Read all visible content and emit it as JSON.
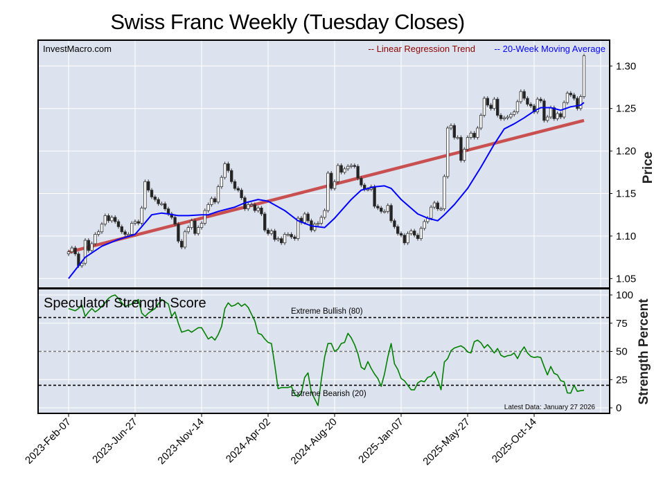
{
  "chart_data": [
    {
      "type": "candlestick",
      "title": "Swiss Franc Weekly (Tuesday Closes)",
      "watermark": "InvestMacro.com",
      "ylabel": "Price",
      "ylim": [
        1.03,
        1.33
      ],
      "yticks": [
        "1.05",
        "1.10",
        "1.15",
        "1.20",
        "1.25",
        "1.30"
      ],
      "x_tick_labels": [
        "2023-Feb-07",
        "2023-Jun-27",
        "2023-Nov-14",
        "2024-Apr-02",
        "2024-Aug-20",
        "2025-Jan-07",
        "2025-May-27",
        "2025-Oct-14"
      ],
      "frequency": "weekly",
      "grid": true,
      "legend": {
        "placement": "top-right",
        "entries": [
          {
            "label": "-- Linear Regression Trend",
            "color": "#8b0000"
          },
          {
            "label": "-- 20-Week Moving Average",
            "color": "#0000ff"
          }
        ]
      },
      "closes": [
        1.0815,
        1.086,
        1.079,
        1.065,
        1.068,
        1.095,
        1.083,
        1.091,
        1.102,
        1.105,
        1.114,
        1.124,
        1.118,
        1.122,
        1.117,
        1.111,
        1.105,
        1.102,
        1.102,
        1.115,
        1.117,
        1.115,
        1.133,
        1.164,
        1.154,
        1.146,
        1.143,
        1.138,
        1.138,
        1.132,
        1.126,
        1.122,
        1.114,
        1.094,
        1.087,
        1.105,
        1.11,
        1.118,
        1.103,
        1.11,
        1.115,
        1.13,
        1.137,
        1.144,
        1.14,
        1.158,
        1.169,
        1.185,
        1.177,
        1.164,
        1.156,
        1.154,
        1.145,
        1.132,
        1.137,
        1.137,
        1.13,
        1.133,
        1.126,
        1.107,
        1.103,
        1.106,
        1.096,
        1.097,
        1.092,
        1.102,
        1.102,
        1.099,
        1.097,
        1.121,
        1.116,
        1.126,
        1.118,
        1.107,
        1.114,
        1.115,
        1.122,
        1.13,
        1.174,
        1.156,
        1.164,
        1.183,
        1.175,
        1.179,
        1.182,
        1.183,
        1.182,
        1.168,
        1.16,
        1.155,
        1.155,
        1.158,
        1.135,
        1.133,
        1.129,
        1.129,
        1.136,
        1.118,
        1.111,
        1.103,
        1.101,
        1.092,
        1.103,
        1.106,
        1.101,
        1.097,
        1.109,
        1.117,
        1.121,
        1.134,
        1.139,
        1.132,
        1.132,
        1.17,
        1.227,
        1.23,
        1.216,
        1.216,
        1.189,
        1.202,
        1.216,
        1.221,
        1.216,
        1.227,
        1.242,
        1.262,
        1.254,
        1.25,
        1.261,
        1.242,
        1.238,
        1.239,
        1.24,
        1.243,
        1.246,
        1.258,
        1.27,
        1.262,
        1.255,
        1.253,
        1.246,
        1.261,
        1.259,
        1.236,
        1.24,
        1.251,
        1.238,
        1.244,
        1.24,
        1.257,
        1.268,
        1.266,
        1.262,
        1.25,
        1.264,
        1.312
      ],
      "first_open": 1.079,
      "moving_average": [
        [
          0,
          1.05
        ],
        [
          5,
          1.075
        ],
        [
          10,
          1.088
        ],
        [
          15,
          1.096
        ],
        [
          20,
          1.102
        ],
        [
          22,
          1.111
        ],
        [
          25,
          1.125
        ],
        [
          28,
          1.127
        ],
        [
          30,
          1.126
        ],
        [
          33,
          1.124
        ],
        [
          36,
          1.124
        ],
        [
          40,
          1.125
        ],
        [
          42,
          1.125
        ],
        [
          45,
          1.129
        ],
        [
          50,
          1.134
        ],
        [
          53,
          1.139
        ],
        [
          57,
          1.143
        ],
        [
          60,
          1.141
        ],
        [
          65,
          1.13
        ],
        [
          69,
          1.118
        ],
        [
          73,
          1.112
        ],
        [
          77,
          1.11
        ],
        [
          80,
          1.121
        ],
        [
          85,
          1.143
        ],
        [
          88,
          1.154
        ],
        [
          92,
          1.158
        ],
        [
          95,
          1.159
        ],
        [
          97,
          1.156
        ],
        [
          100,
          1.143
        ],
        [
          105,
          1.126
        ],
        [
          108,
          1.121
        ],
        [
          111,
          1.118
        ],
        [
          113,
          1.125
        ],
        [
          116,
          1.137
        ],
        [
          120,
          1.156
        ],
        [
          124,
          1.181
        ],
        [
          128,
          1.208
        ],
        [
          131,
          1.226
        ],
        [
          134,
          1.232
        ],
        [
          137,
          1.239
        ],
        [
          140,
          1.247
        ],
        [
          142,
          1.251
        ],
        [
          145,
          1.251
        ],
        [
          148,
          1.248
        ],
        [
          151,
          1.252
        ],
        [
          154,
          1.254
        ],
        [
          155,
          1.257
        ]
      ],
      "regression": {
        "start": 1.081,
        "end": 1.236
      },
      "colors": {
        "up": "#ffffff",
        "down": "#222222",
        "regression": "#c85050",
        "moving_average": "#0000ff"
      }
    },
    {
      "type": "line",
      "title": "Speculator Strength Score",
      "ylabel": "Strength Percent",
      "ylim": [
        0,
        100
      ],
      "yticks": [
        "0",
        "25",
        "50",
        "75",
        "100"
      ],
      "frequency": "weekly",
      "annotations": {
        "bullish": {
          "label": "Extreme Bullish (80)",
          "value": 80
        },
        "bearish": {
          "label": "Extreme Bearish (20)",
          "value": 20
        },
        "midline": 50,
        "latest": "Latest Data: January 27 2026"
      },
      "color": "#008000",
      "values": [
        88,
        87,
        86,
        88,
        91,
        81,
        85,
        88,
        85,
        87,
        90,
        93,
        97,
        99,
        100,
        97,
        93,
        90,
        91,
        92,
        94,
        96,
        84,
        81,
        84,
        86,
        88,
        92,
        96,
        94,
        92,
        81,
        85,
        75,
        67,
        68,
        69,
        67,
        69,
        71,
        71,
        66,
        61,
        63,
        60,
        65,
        72,
        88,
        93,
        90,
        91,
        93,
        90,
        92,
        89,
        83,
        77,
        66,
        65,
        61,
        58,
        57,
        38,
        17,
        18,
        18,
        18,
        19,
        12,
        10,
        13,
        27,
        31,
        14,
        8,
        2,
        25,
        45,
        57,
        57,
        50,
        52,
        57,
        58,
        66,
        62,
        56,
        48,
        36,
        34,
        41,
        35,
        30,
        26,
        19,
        30,
        45,
        57,
        39,
        34,
        26,
        24,
        20,
        16,
        16,
        22,
        24,
        23,
        27,
        28,
        32,
        25,
        16,
        40.6,
        43.6,
        50.6,
        53,
        54,
        55,
        53,
        49.6,
        48.6,
        58.6,
        60,
        57.6,
        53,
        56,
        52.6,
        48.6,
        52.6,
        46.6,
        45,
        46.2,
        46.6,
        48.6,
        43.6,
        49.6,
        54,
        48.6,
        45.6,
        44.6,
        45.2,
        44.6,
        36.6,
        29.2,
        36.6,
        30.6,
        29.2,
        24,
        23.2,
        13.2,
        13,
        20,
        14.6,
        15.2,
        15.6
      ]
    }
  ]
}
